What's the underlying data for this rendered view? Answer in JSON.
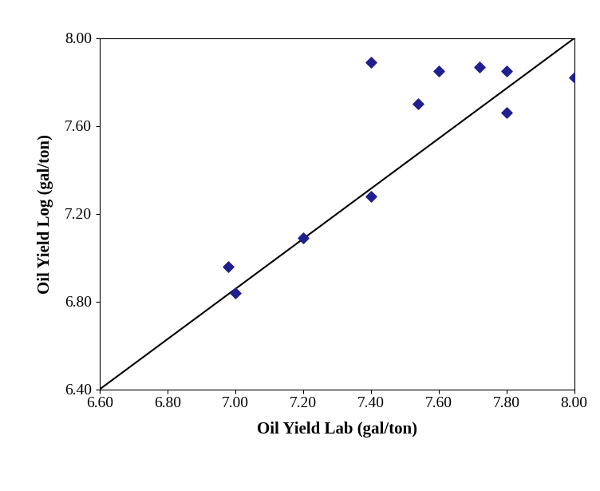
{
  "chart_data": {
    "type": "scatter",
    "xlabel": "Oil Yield Lab (gal/ton)",
    "ylabel": "Oil Yield Log (gal/ton)",
    "xlim": [
      6.6,
      8.0
    ],
    "ylim": [
      6.4,
      8.0
    ],
    "xticks": [
      {
        "value": 6.6,
        "label": "6.60"
      },
      {
        "value": 6.8,
        "label": "6.80"
      },
      {
        "value": 7.0,
        "label": "7.00"
      },
      {
        "value": 7.2,
        "label": "7.20"
      },
      {
        "value": 7.4,
        "label": "7.40"
      },
      {
        "value": 7.6,
        "label": "7.60"
      },
      {
        "value": 7.8,
        "label": "7.80"
      },
      {
        "value": 8.0,
        "label": "8.00"
      }
    ],
    "yticks": [
      {
        "value": 6.4,
        "label": "6.40"
      },
      {
        "value": 6.8,
        "label": "6.80"
      },
      {
        "value": 7.2,
        "label": "7.20"
      },
      {
        "value": 7.6,
        "label": "7.60"
      },
      {
        "value": 8.0,
        "label": "8.00"
      }
    ],
    "grid": false,
    "series": [
      {
        "type": "scatter",
        "color": "#1f1f8f",
        "marker": "diamond",
        "x": [
          6.98,
          7.0,
          7.2,
          7.4,
          7.4,
          7.54,
          7.6,
          7.72,
          7.8,
          7.8,
          8.0
        ],
        "values": [
          6.96,
          6.84,
          7.09,
          7.89,
          7.28,
          7.7,
          7.85,
          7.87,
          7.85,
          7.66,
          7.82
        ]
      },
      {
        "type": "line",
        "color": "#000000",
        "line_style": "solid",
        "x": [
          6.6,
          8.0
        ],
        "values": [
          6.4,
          8.0
        ]
      }
    ]
  }
}
